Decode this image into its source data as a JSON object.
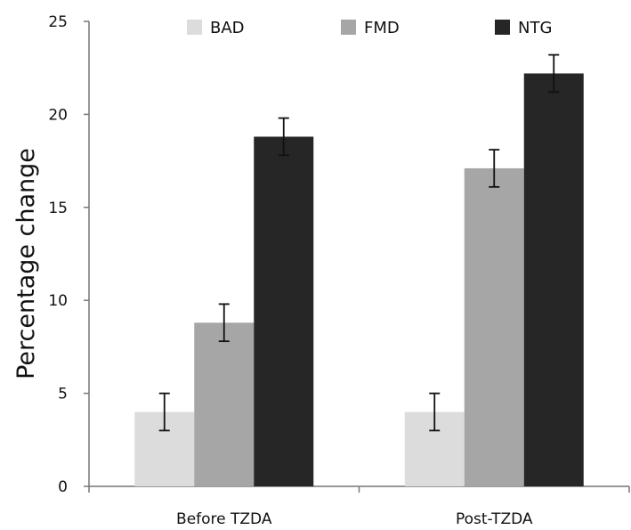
{
  "chart_data": {
    "type": "bar",
    "title": "",
    "xlabel": "",
    "ylabel": "Percentage change",
    "ylim": [
      0,
      25
    ],
    "yticks": [
      0,
      5,
      10,
      15,
      20,
      25
    ],
    "categories": [
      "Before TZDA",
      "Post-TZDA"
    ],
    "series": [
      {
        "name": "BAD",
        "color": "#dcdcdc",
        "values": [
          4.0,
          4.0
        ],
        "errors": [
          1.0,
          1.0
        ]
      },
      {
        "name": "FMD",
        "color": "#a6a6a6",
        "values": [
          8.8,
          17.1
        ],
        "errors": [
          1.0,
          1.0
        ]
      },
      {
        "name": "NTG",
        "color": "#262626",
        "values": [
          18.8,
          22.2
        ],
        "errors": [
          1.0,
          1.0
        ]
      }
    ],
    "legend_position": "top",
    "grid": false,
    "error_bars": true
  }
}
